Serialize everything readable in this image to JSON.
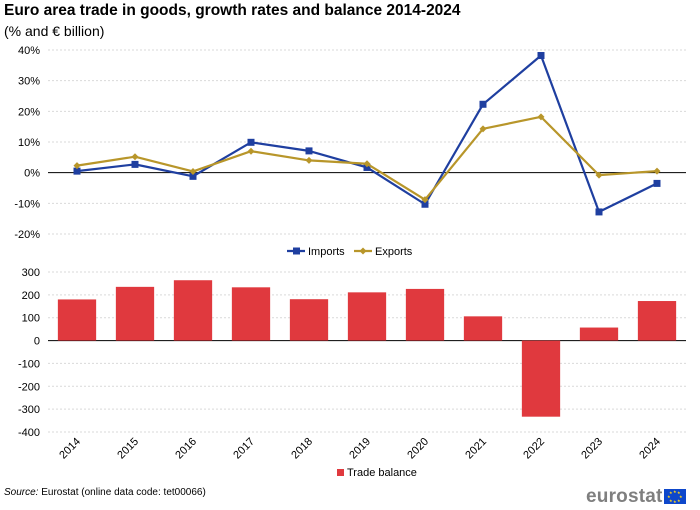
{
  "title": "Euro area trade in goods, growth rates and balance 2014-2024",
  "subtitle": "(% and € billion)",
  "source_label": "Source:",
  "source_text": "Eurostat (online data code: tet00066)",
  "logo_text": "eurostat",
  "colors": {
    "imports": "#1f3fa0",
    "exports": "#b8962a",
    "trade_balance": "#e0393e",
    "grid": "#d9d9d9",
    "axis": "#000000"
  },
  "chart_data": [
    {
      "type": "line",
      "categories": [
        "2014",
        "2015",
        "2016",
        "2017",
        "2018",
        "2019",
        "2020",
        "2021",
        "2022",
        "2023",
        "2024"
      ],
      "series": [
        {
          "name": "Imports",
          "color": "#1f3fa0",
          "marker": "square",
          "values": [
            0.5,
            2.7,
            -1.2,
            9.9,
            7.1,
            1.7,
            -10.3,
            22.3,
            38.2,
            -12.8,
            -3.5
          ]
        },
        {
          "name": "Exports",
          "color": "#b8962a",
          "marker": "diamond",
          "values": [
            2.3,
            5.2,
            0.4,
            7.0,
            4.0,
            2.9,
            -8.8,
            14.3,
            18.2,
            -0.8,
            0.5
          ]
        }
      ],
      "yticks": [
        "40%",
        "30%",
        "20%",
        "10%",
        "0%",
        "-10%",
        "-20%"
      ],
      "ylim": [
        -20,
        40
      ],
      "grid": true,
      "legend": "bottom-center"
    },
    {
      "type": "bar",
      "categories": [
        "2014",
        "2015",
        "2016",
        "2017",
        "2018",
        "2019",
        "2020",
        "2021",
        "2022",
        "2023",
        "2024"
      ],
      "series": [
        {
          "name": "Trade balance",
          "color": "#e0393e",
          "values": [
            180,
            235,
            264,
            233,
            181,
            211,
            226,
            106,
            -333,
            57,
            173
          ]
        }
      ],
      "yticks": [
        "300",
        "200",
        "100",
        "0",
        "-100",
        "-200",
        "-300",
        "-400"
      ],
      "ylim": [
        -400,
        300
      ],
      "grid": true,
      "legend": "bottom-center"
    }
  ]
}
